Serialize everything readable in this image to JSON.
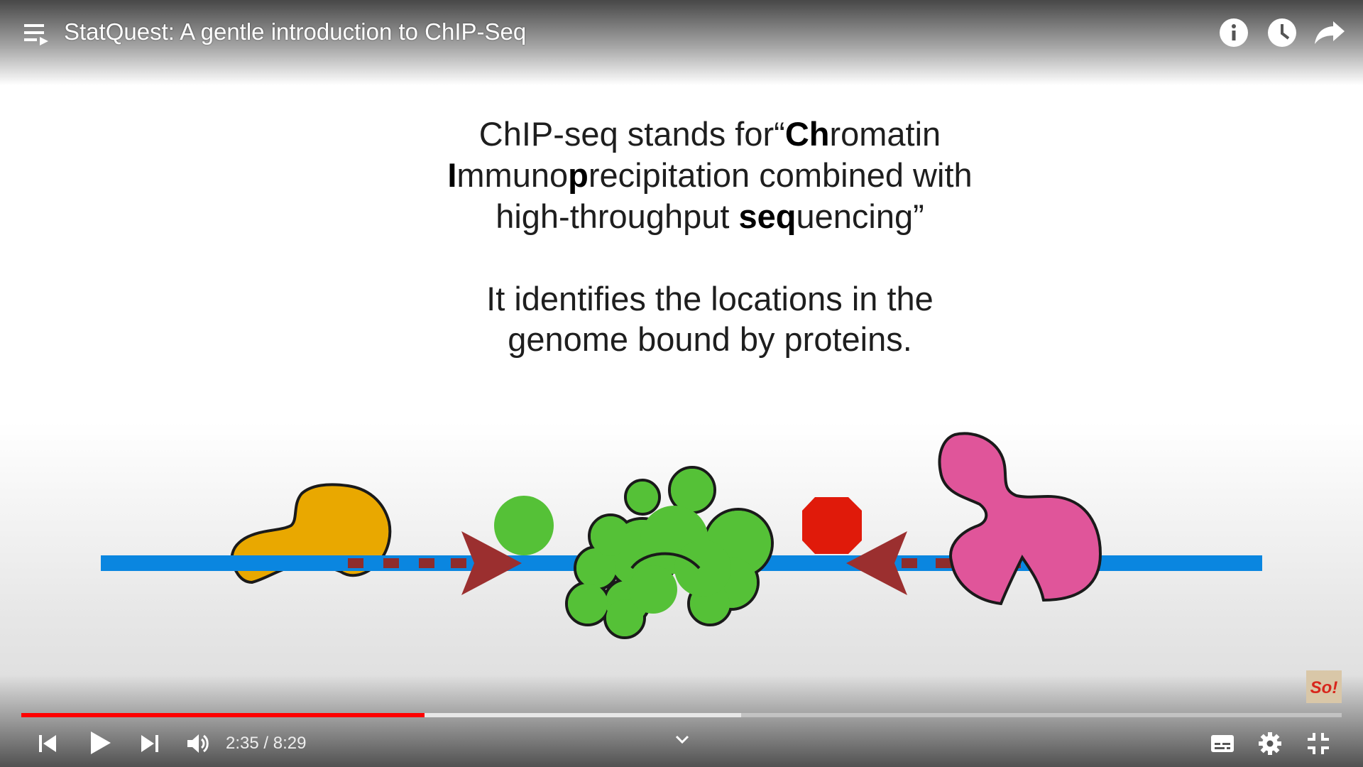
{
  "header": {
    "title": "StatQuest: A gentle introduction to ChIP-Seq"
  },
  "slide": {
    "definition": {
      "l1_a": "ChIP-seq stands for“",
      "l1_b": "Ch",
      "l1_c": "romatin",
      "l2_a": "I",
      "l2_b": "mmuno",
      "l2_c": "p",
      "l2_d": "recipitation combined with",
      "l3_a": "high-throughput ",
      "l3_b": "seq",
      "l3_c": "uencing”"
    },
    "description": {
      "line1": "It identifies the locations in the",
      "line2": "genome bound by proteins."
    },
    "watermark": "So!"
  },
  "controls": {
    "current_time": "2:35",
    "separator": " / ",
    "duration": "8:29",
    "progress_fraction": 0.3054,
    "buffered_fraction": 0.545
  },
  "colors": {
    "accent": "#ff0000",
    "dna": "#0a86e0",
    "orange_protein": "#e9a800",
    "green_protein": "#55c137",
    "red_marker": "#e01a0a",
    "pink_protein": "#e0559a",
    "primer": "#8e2c2c"
  },
  "icons": [
    "playlist-icon",
    "info-icon",
    "watch-later-icon",
    "share-icon",
    "previous-icon",
    "play-icon",
    "next-icon",
    "volume-icon",
    "chevron-down-icon",
    "subtitles-icon",
    "settings-icon",
    "exit-fullscreen-icon"
  ]
}
